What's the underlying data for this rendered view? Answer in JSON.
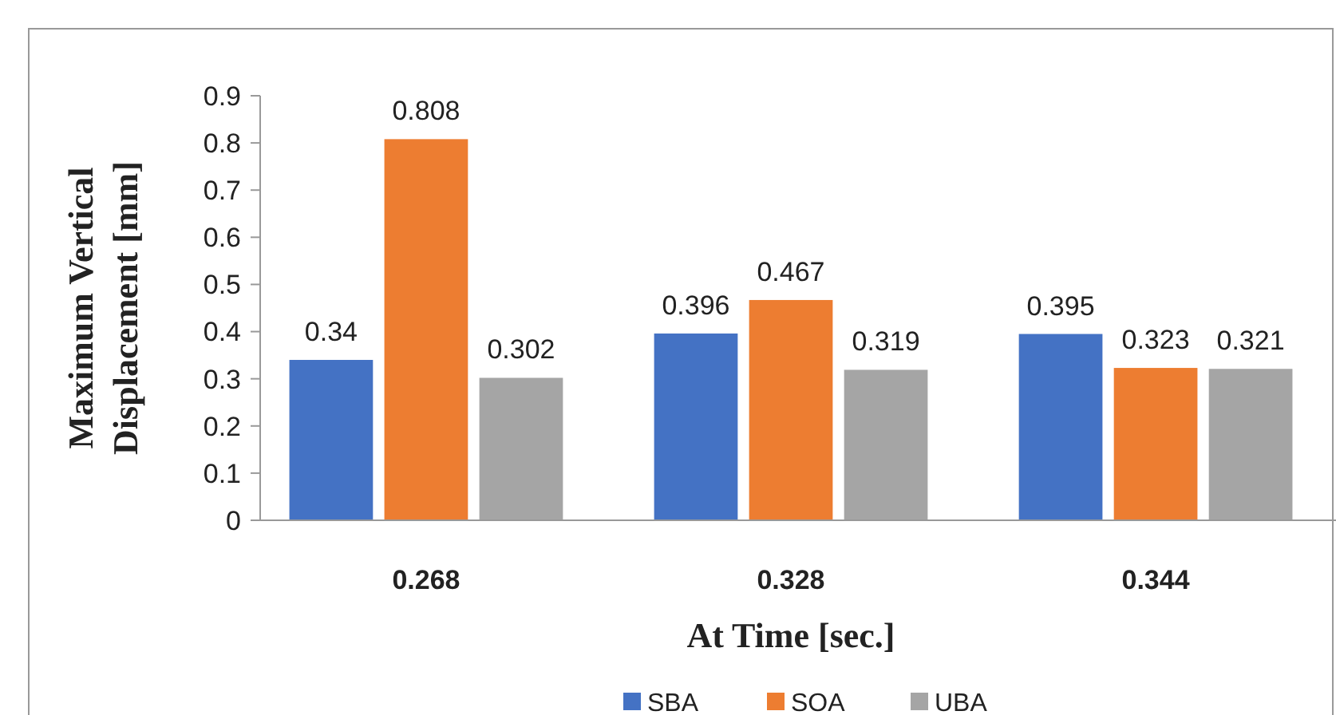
{
  "chart_data": {
    "type": "bar",
    "xlabel": "At Time [sec.]",
    "ylabel": "Maximum Vertical Displacement [mm]",
    "categories": [
      "0.268",
      "0.328",
      "0.344"
    ],
    "series": [
      {
        "name": "SBA",
        "color": "#4472c4",
        "values": [
          0.34,
          0.396,
          0.395
        ]
      },
      {
        "name": "SOA",
        "color": "#ed7d31",
        "values": [
          0.808,
          0.467,
          0.323
        ]
      },
      {
        "name": "UBA",
        "color": "#a5a5a5",
        "values": [
          0.302,
          0.319,
          0.321
        ]
      }
    ],
    "ylim": [
      0,
      0.9
    ],
    "yticks": [
      0,
      0.1,
      0.2,
      0.3,
      0.4,
      0.5,
      0.6,
      0.7,
      0.8,
      0.9
    ],
    "data_labels": true,
    "grid": false,
    "legend": "bottom"
  }
}
